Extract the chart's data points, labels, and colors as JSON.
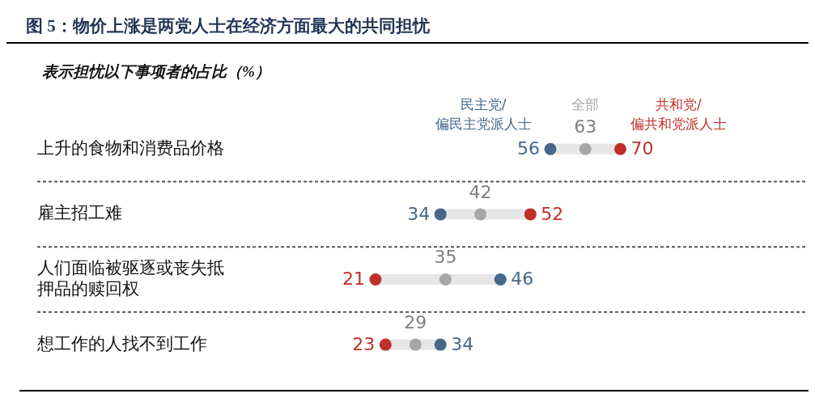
{
  "chart_data": {
    "type": "scatter",
    "orientation": "horizontal",
    "title": "图 5：物价上涨是两党人士在经济方面最大的共同担忧",
    "subtitle": "表示担忧以下事项者的占比（%）",
    "categories": [
      "上升的食物和消费品价格",
      "雇主招工难",
      "人们面临被驱逐或丧失抵押品的赎回权",
      "想工作的人找不到工作"
    ],
    "series": [
      {
        "name": "民主党/偏民主党派人士",
        "color": "#456789",
        "values": [
          56,
          34,
          46,
          34
        ]
      },
      {
        "name": "全部",
        "color": "#a6a6a6",
        "values": [
          63,
          42,
          35,
          29
        ]
      },
      {
        "name": "共和党/偏共和党派人士",
        "color": "#c0302a",
        "values": [
          70,
          52,
          21,
          23
        ]
      }
    ],
    "tick_labels": "y",
    "data_labels": true,
    "legend": "top",
    "grid": "y",
    "marker": "circle"
  }
}
